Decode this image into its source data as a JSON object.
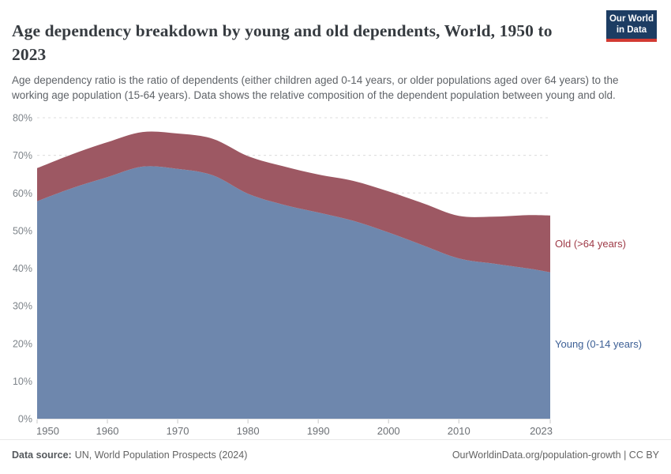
{
  "header": {
    "title": "Age dependency breakdown by young and old dependents, World, 1950 to 2023",
    "subtitle": "Age dependency ratio is the ratio of dependents (either children aged 0-14 years, or older populations aged over 64 years) to the working age population (15-64 years). Data shows the relative composition of the dependent population between young and old.",
    "logo": {
      "line1": "Our World",
      "line2": "in Data",
      "bg_color": "#1d3d63",
      "accent_color": "#d23a32"
    }
  },
  "footer": {
    "source_label": "Data source:",
    "source_value": "UN, World Population Prospects (2024)",
    "attribution": "OurWorldinData.org/population-growth | CC BY"
  },
  "chart_data": {
    "type": "area",
    "stacked": true,
    "title": "Age dependency breakdown by young and old dependents, World, 1950 to 2023",
    "xlabel": "",
    "ylabel": "",
    "xlim": [
      1950,
      2023
    ],
    "ylim": [
      0,
      80
    ],
    "grid": "horizontal-dashed",
    "legend_position": "right-inline-labels",
    "x": [
      1950,
      1955,
      1960,
      1965,
      1970,
      1975,
      1980,
      1985,
      1990,
      1995,
      2000,
      2005,
      2010,
      2015,
      2020,
      2023
    ],
    "series": [
      {
        "name": "Young (0-14 years)",
        "color": "#6e87ad",
        "label_color": "#3d6096",
        "values": [
          57.8,
          61.3,
          64.2,
          67.0,
          66.4,
          64.7,
          59.8,
          56.9,
          54.8,
          52.6,
          49.5,
          46.0,
          42.6,
          41.2,
          39.9,
          38.9
        ]
      },
      {
        "name": "Old (>64 years)",
        "color": "#9d5863",
        "label_color": "#9e3a47",
        "values": [
          8.8,
          9.0,
          9.3,
          9.2,
          9.4,
          9.7,
          10.0,
          10.2,
          10.1,
          10.6,
          10.9,
          11.2,
          11.3,
          12.5,
          14.2,
          15.1
        ]
      }
    ],
    "x_ticks": [
      1950,
      1960,
      1970,
      1980,
      1990,
      2000,
      2010,
      2023
    ],
    "y_ticks": [
      0,
      10,
      20,
      30,
      40,
      50,
      60,
      70,
      80
    ],
    "y_tick_suffix": "%",
    "axis_color": "#c8c8c8",
    "grid_color": "#dcdcdc"
  }
}
